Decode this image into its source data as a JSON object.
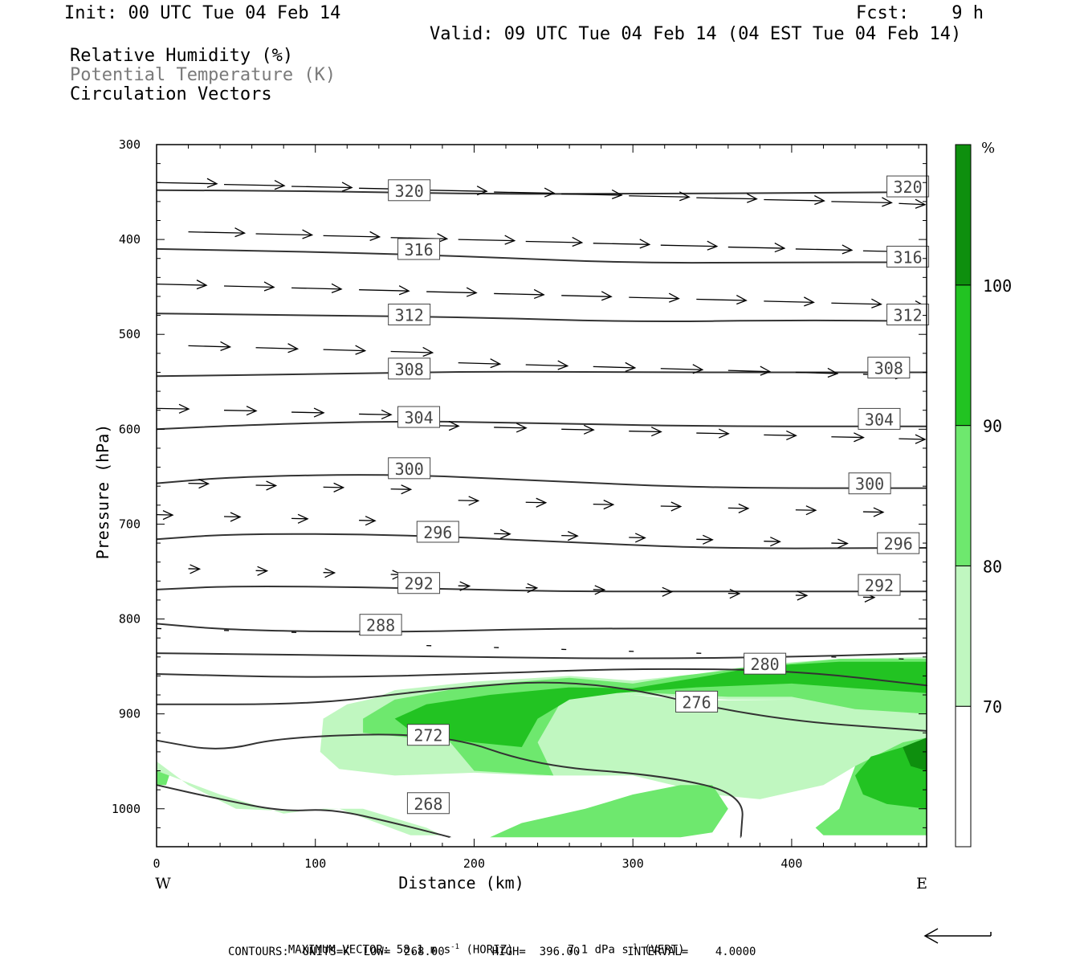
{
  "header": {
    "init": "Init: 00 UTC Tue 04 Feb 14",
    "fcst": "Fcst:    9 h",
    "valid": "Valid: 09 UTC Tue 04 Feb 14 (04 EST Tue 04 Feb 14)",
    "fields": [
      "Relative Humidity (%)",
      "Potential Temperature (K)",
      "Circulation Vectors"
    ]
  },
  "footer": {
    "max_vector_label": "MAXIMUM VECTOR:",
    "max_vector_horiz": "58.1 m s",
    "horiz_tag": " (HORIZ)",
    "max_vector_vert": "7.1 dPa s",
    "vert_tag": " (VERT)",
    "exponent": "-1",
    "contours": "CONTOURS:  UNITS=K  LOW=  268.00       HIGH=  396.00       INTERVAL=    4.0000"
  },
  "chart_data": {
    "type": "cross-section",
    "xlabel": "Distance (km)",
    "ylabel": "Pressure (hPa)",
    "x_ticks": [
      0,
      100,
      200,
      300,
      400
    ],
    "y_ticks": [
      300,
      400,
      500,
      600,
      700,
      800,
      900,
      1000
    ],
    "xlim": [
      0,
      485
    ],
    "ylim": [
      300,
      1040
    ],
    "x_end_labels": {
      "left": "W",
      "right": "E"
    },
    "colorbar": {
      "unit": "%",
      "levels": [
        70,
        80,
        90,
        100
      ],
      "colors": [
        "#ffffff",
        "#c0f7c0",
        "#6ee86e",
        "#22c322",
        "#0e8f0e"
      ]
    },
    "theta_contours": [
      {
        "value": 320,
        "labels": [
          {
            "x": 146,
            "p": 354
          },
          {
            "x": 460,
            "p": 350
          }
        ],
        "points": [
          [
            0,
            348
          ],
          [
            100,
            349
          ],
          [
            200,
            352
          ],
          [
            300,
            352
          ],
          [
            400,
            351
          ],
          [
            485,
            350
          ]
        ]
      },
      {
        "value": 316,
        "labels": [
          {
            "x": 152,
            "p": 416
          },
          {
            "x": 460,
            "p": 424
          }
        ],
        "points": [
          [
            0,
            410
          ],
          [
            100,
            413
          ],
          [
            200,
            418
          ],
          [
            300,
            425
          ],
          [
            400,
            424
          ],
          [
            485,
            424
          ]
        ]
      },
      {
        "value": 312,
        "labels": [
          {
            "x": 146,
            "p": 485
          },
          {
            "x": 460,
            "p": 485
          }
        ],
        "points": [
          [
            0,
            478
          ],
          [
            100,
            480
          ],
          [
            200,
            482
          ],
          [
            300,
            487
          ],
          [
            400,
            485
          ],
          [
            485,
            486
          ]
        ]
      },
      {
        "value": 308,
        "labels": [
          {
            "x": 146,
            "p": 542
          },
          {
            "x": 448,
            "p": 541
          }
        ],
        "points": [
          [
            0,
            544
          ],
          [
            100,
            542
          ],
          [
            200,
            539
          ],
          [
            300,
            540
          ],
          [
            400,
            540
          ],
          [
            485,
            540
          ]
        ]
      },
      {
        "value": 304,
        "labels": [
          {
            "x": 152,
            "p": 593
          },
          {
            "x": 442,
            "p": 595
          }
        ],
        "points": [
          [
            0,
            600
          ],
          [
            50,
            596
          ],
          [
            150,
            591
          ],
          [
            250,
            594
          ],
          [
            350,
            597
          ],
          [
            485,
            597
          ]
        ]
      },
      {
        "value": 300,
        "labels": [
          {
            "x": 146,
            "p": 647
          },
          {
            "x": 436,
            "p": 663
          }
        ],
        "points": [
          [
            0,
            657
          ],
          [
            50,
            650
          ],
          [
            150,
            647
          ],
          [
            250,
            655
          ],
          [
            350,
            662
          ],
          [
            485,
            662
          ]
        ]
      },
      {
        "value": 296,
        "labels": [
          {
            "x": 164,
            "p": 714
          },
          {
            "x": 454,
            "p": 726
          }
        ],
        "points": [
          [
            0,
            716
          ],
          [
            50,
            710
          ],
          [
            150,
            711
          ],
          [
            250,
            718
          ],
          [
            350,
            726
          ],
          [
            485,
            725
          ]
        ]
      },
      {
        "value": 292,
        "labels": [
          {
            "x": 152,
            "p": 768
          },
          {
            "x": 442,
            "p": 770
          }
        ],
        "points": [
          [
            0,
            769
          ],
          [
            50,
            765
          ],
          [
            150,
            767
          ],
          [
            250,
            771
          ],
          [
            350,
            771
          ],
          [
            485,
            771
          ]
        ]
      },
      {
        "value": 288,
        "labels": [
          {
            "x": 128,
            "p": 812
          }
        ],
        "points": [
          [
            0,
            805
          ],
          [
            50,
            812
          ],
          [
            150,
            814
          ],
          [
            250,
            810
          ],
          [
            350,
            810
          ],
          [
            485,
            810
          ]
        ]
      },
      {
        "value": 284,
        "labels": [],
        "points": [
          [
            0,
            836
          ],
          [
            100,
            838
          ],
          [
            200,
            840
          ],
          [
            300,
            842
          ],
          [
            400,
            840
          ],
          [
            485,
            836
          ]
        ]
      },
      {
        "value": 280,
        "labels": [
          {
            "x": 370,
            "p": 853
          }
        ],
        "points": [
          [
            0,
            858
          ],
          [
            100,
            862
          ],
          [
            200,
            858
          ],
          [
            300,
            852
          ],
          [
            400,
            854
          ],
          [
            485,
            870
          ]
        ]
      },
      {
        "value": 276,
        "labels": [
          {
            "x": 327,
            "p": 893
          }
        ],
        "points": [
          [
            0,
            890
          ],
          [
            100,
            890
          ],
          [
            170,
            875
          ],
          [
            270,
            862
          ],
          [
            380,
            905
          ],
          [
            485,
            918
          ]
        ]
      },
      {
        "value": 272,
        "labels": [
          {
            "x": 158,
            "p": 928
          }
        ],
        "points": [
          [
            0,
            928
          ],
          [
            40,
            940
          ],
          [
            80,
            924
          ],
          [
            180,
            920
          ],
          [
            240,
            955
          ],
          [
            320,
            965
          ],
          [
            370,
            985
          ],
          [
            368,
            1030
          ]
        ]
      },
      {
        "value": 268,
        "labels": [
          {
            "x": 158,
            "p": 1000
          }
        ],
        "points": [
          [
            0,
            975
          ],
          [
            40,
            990
          ],
          [
            80,
            1003
          ],
          [
            110,
            1000
          ],
          [
            150,
            1015
          ],
          [
            185,
            1030
          ]
        ]
      }
    ],
    "max_vector": {
      "horiz": 58.1,
      "horiz_unit": "m s-1",
      "vert": 7.1,
      "vert_unit": "dPa s-1"
    },
    "contour_info": {
      "units": "K",
      "low": 268.0,
      "high": 396.0,
      "interval": 4.0
    }
  }
}
